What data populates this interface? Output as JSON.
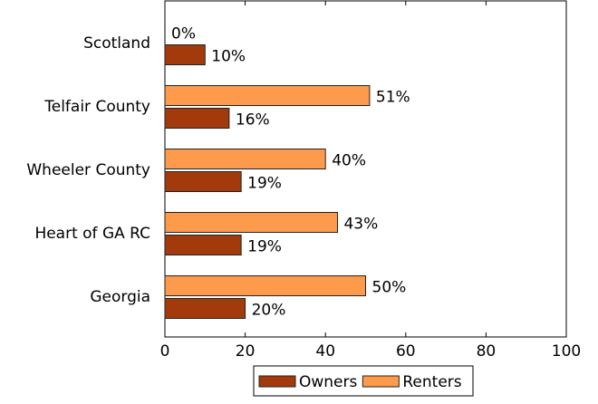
{
  "chart_data": {
    "type": "barh",
    "categories": [
      "Scotland",
      "Telfair County",
      "Wheeler County",
      "Heart of GA RC",
      "Georgia"
    ],
    "series": [
      {
        "name": "Owners",
        "color": "#a33a0b",
        "values": [
          10,
          16,
          19,
          19,
          20
        ],
        "value_labels": [
          "10%",
          "16%",
          "19%",
          "19%",
          "20%"
        ]
      },
      {
        "name": "Renters",
        "color": "#fd9a4c",
        "values": [
          0,
          51,
          40,
          43,
          50
        ],
        "value_labels": [
          "0%",
          "51%",
          "40%",
          "43%",
          "50%"
        ]
      }
    ],
    "xlim": [
      0,
      100
    ],
    "xticks": [
      0,
      20,
      40,
      60,
      80,
      100
    ],
    "grid": false,
    "legend": "bottom"
  }
}
